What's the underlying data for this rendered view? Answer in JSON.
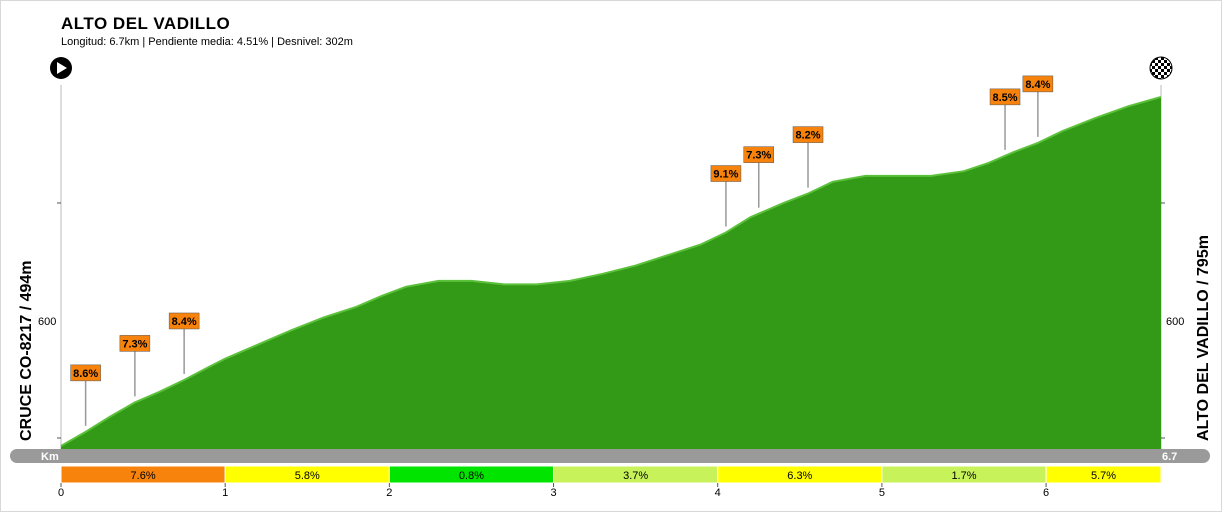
{
  "header": {
    "title": "ALTO DEL VADILLO",
    "subtitle": "Longitud: 6.7km | Pendiente media: 4.51% | Desnivel: 302m"
  },
  "chart_data": {
    "type": "area",
    "start_label": "CRUCE CO-8217 / 494m",
    "end_label": "ALTO DEL VADILLO / 795m",
    "km_bar_left": "Km",
    "km_bar_right": "6.7",
    "xlim": [
      0,
      6.7
    ],
    "ylim": [
      490,
      800
    ],
    "y_ticks": [
      600
    ],
    "x_ticks": [
      "0",
      "1",
      "2",
      "3",
      "4",
      "5",
      "6"
    ],
    "fill_color": "#339a18",
    "stroke_color": "#5cc13a",
    "profile": {
      "x": [
        0,
        0.15,
        0.3,
        0.45,
        0.6,
        0.75,
        0.9,
        1.0,
        1.2,
        1.4,
        1.6,
        1.8,
        1.95,
        2.1,
        2.3,
        2.5,
        2.7,
        2.9,
        3.1,
        3.3,
        3.5,
        3.7,
        3.9,
        4.05,
        4.2,
        4.4,
        4.55,
        4.7,
        4.9,
        5.1,
        5.3,
        5.5,
        5.65,
        5.8,
        5.95,
        6.1,
        6.3,
        6.5,
        6.7
      ],
      "y": [
        494,
        506,
        519,
        531,
        540,
        550,
        561,
        568,
        580,
        592,
        603,
        612,
        621,
        629,
        634,
        634,
        631,
        631,
        634,
        640,
        647,
        656,
        665,
        675,
        688,
        700,
        708,
        718,
        723,
        723,
        723,
        727,
        734,
        743,
        751,
        761,
        772,
        782,
        790
      ]
    },
    "gradient_markers": [
      {
        "km": 0.15,
        "label": "8.6%"
      },
      {
        "km": 0.45,
        "label": "7.3%"
      },
      {
        "km": 0.75,
        "label": "8.4%"
      },
      {
        "km": 4.05,
        "label": "9.1%"
      },
      {
        "km": 4.25,
        "label": "7.3%"
      },
      {
        "km": 4.55,
        "label": "8.2%"
      },
      {
        "km": 5.75,
        "label": "8.5%"
      },
      {
        "km": 5.95,
        "label": "8.4%"
      }
    ],
    "segments": [
      {
        "label": "7.6%",
        "color": "#f7830c"
      },
      {
        "label": "5.8%",
        "color": "#ffff00"
      },
      {
        "label": "0.8%",
        "color": "#00e400"
      },
      {
        "label": "3.7%",
        "color": "#c8f25a"
      },
      {
        "label": "6.3%",
        "color": "#ffff00"
      },
      {
        "label": "1.7%",
        "color": "#c8f25a"
      },
      {
        "label": "5.7%",
        "color": "#ffff00"
      }
    ],
    "badge_color": "#f7830c",
    "bar_color": "#9a9a9a"
  },
  "icons": {
    "start": "play-icon",
    "finish": "checkered-flag-icon"
  }
}
